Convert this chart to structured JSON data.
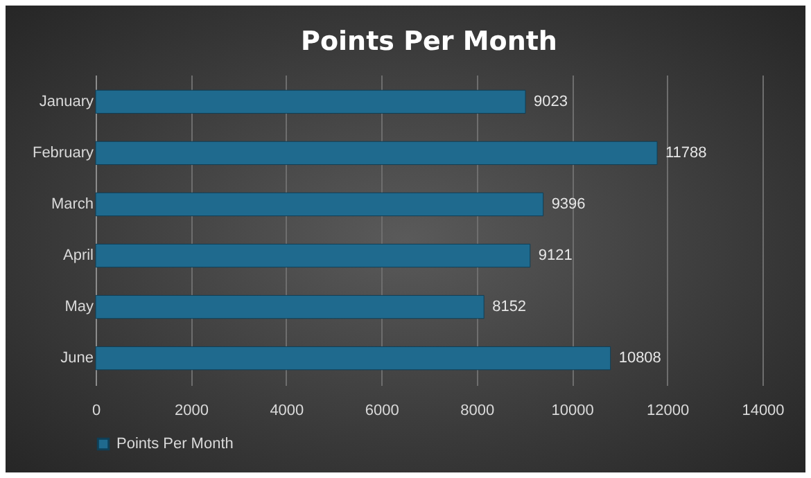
{
  "chart_data": {
    "type": "bar",
    "orientation": "horizontal",
    "title": "Points Per Month",
    "categories": [
      "January",
      "February",
      "March",
      "April",
      "May",
      "June"
    ],
    "series": [
      {
        "name": "Points Per Month",
        "color": "#1f6a8e",
        "values": [
          9023,
          11788,
          9396,
          9121,
          8152,
          10808
        ]
      }
    ],
    "xlim": [
      0,
      14000
    ],
    "xticks": [
      0,
      2000,
      4000,
      6000,
      8000,
      10000,
      12000,
      14000
    ],
    "grid": "x",
    "legend": "bottom",
    "data_labels": true
  }
}
